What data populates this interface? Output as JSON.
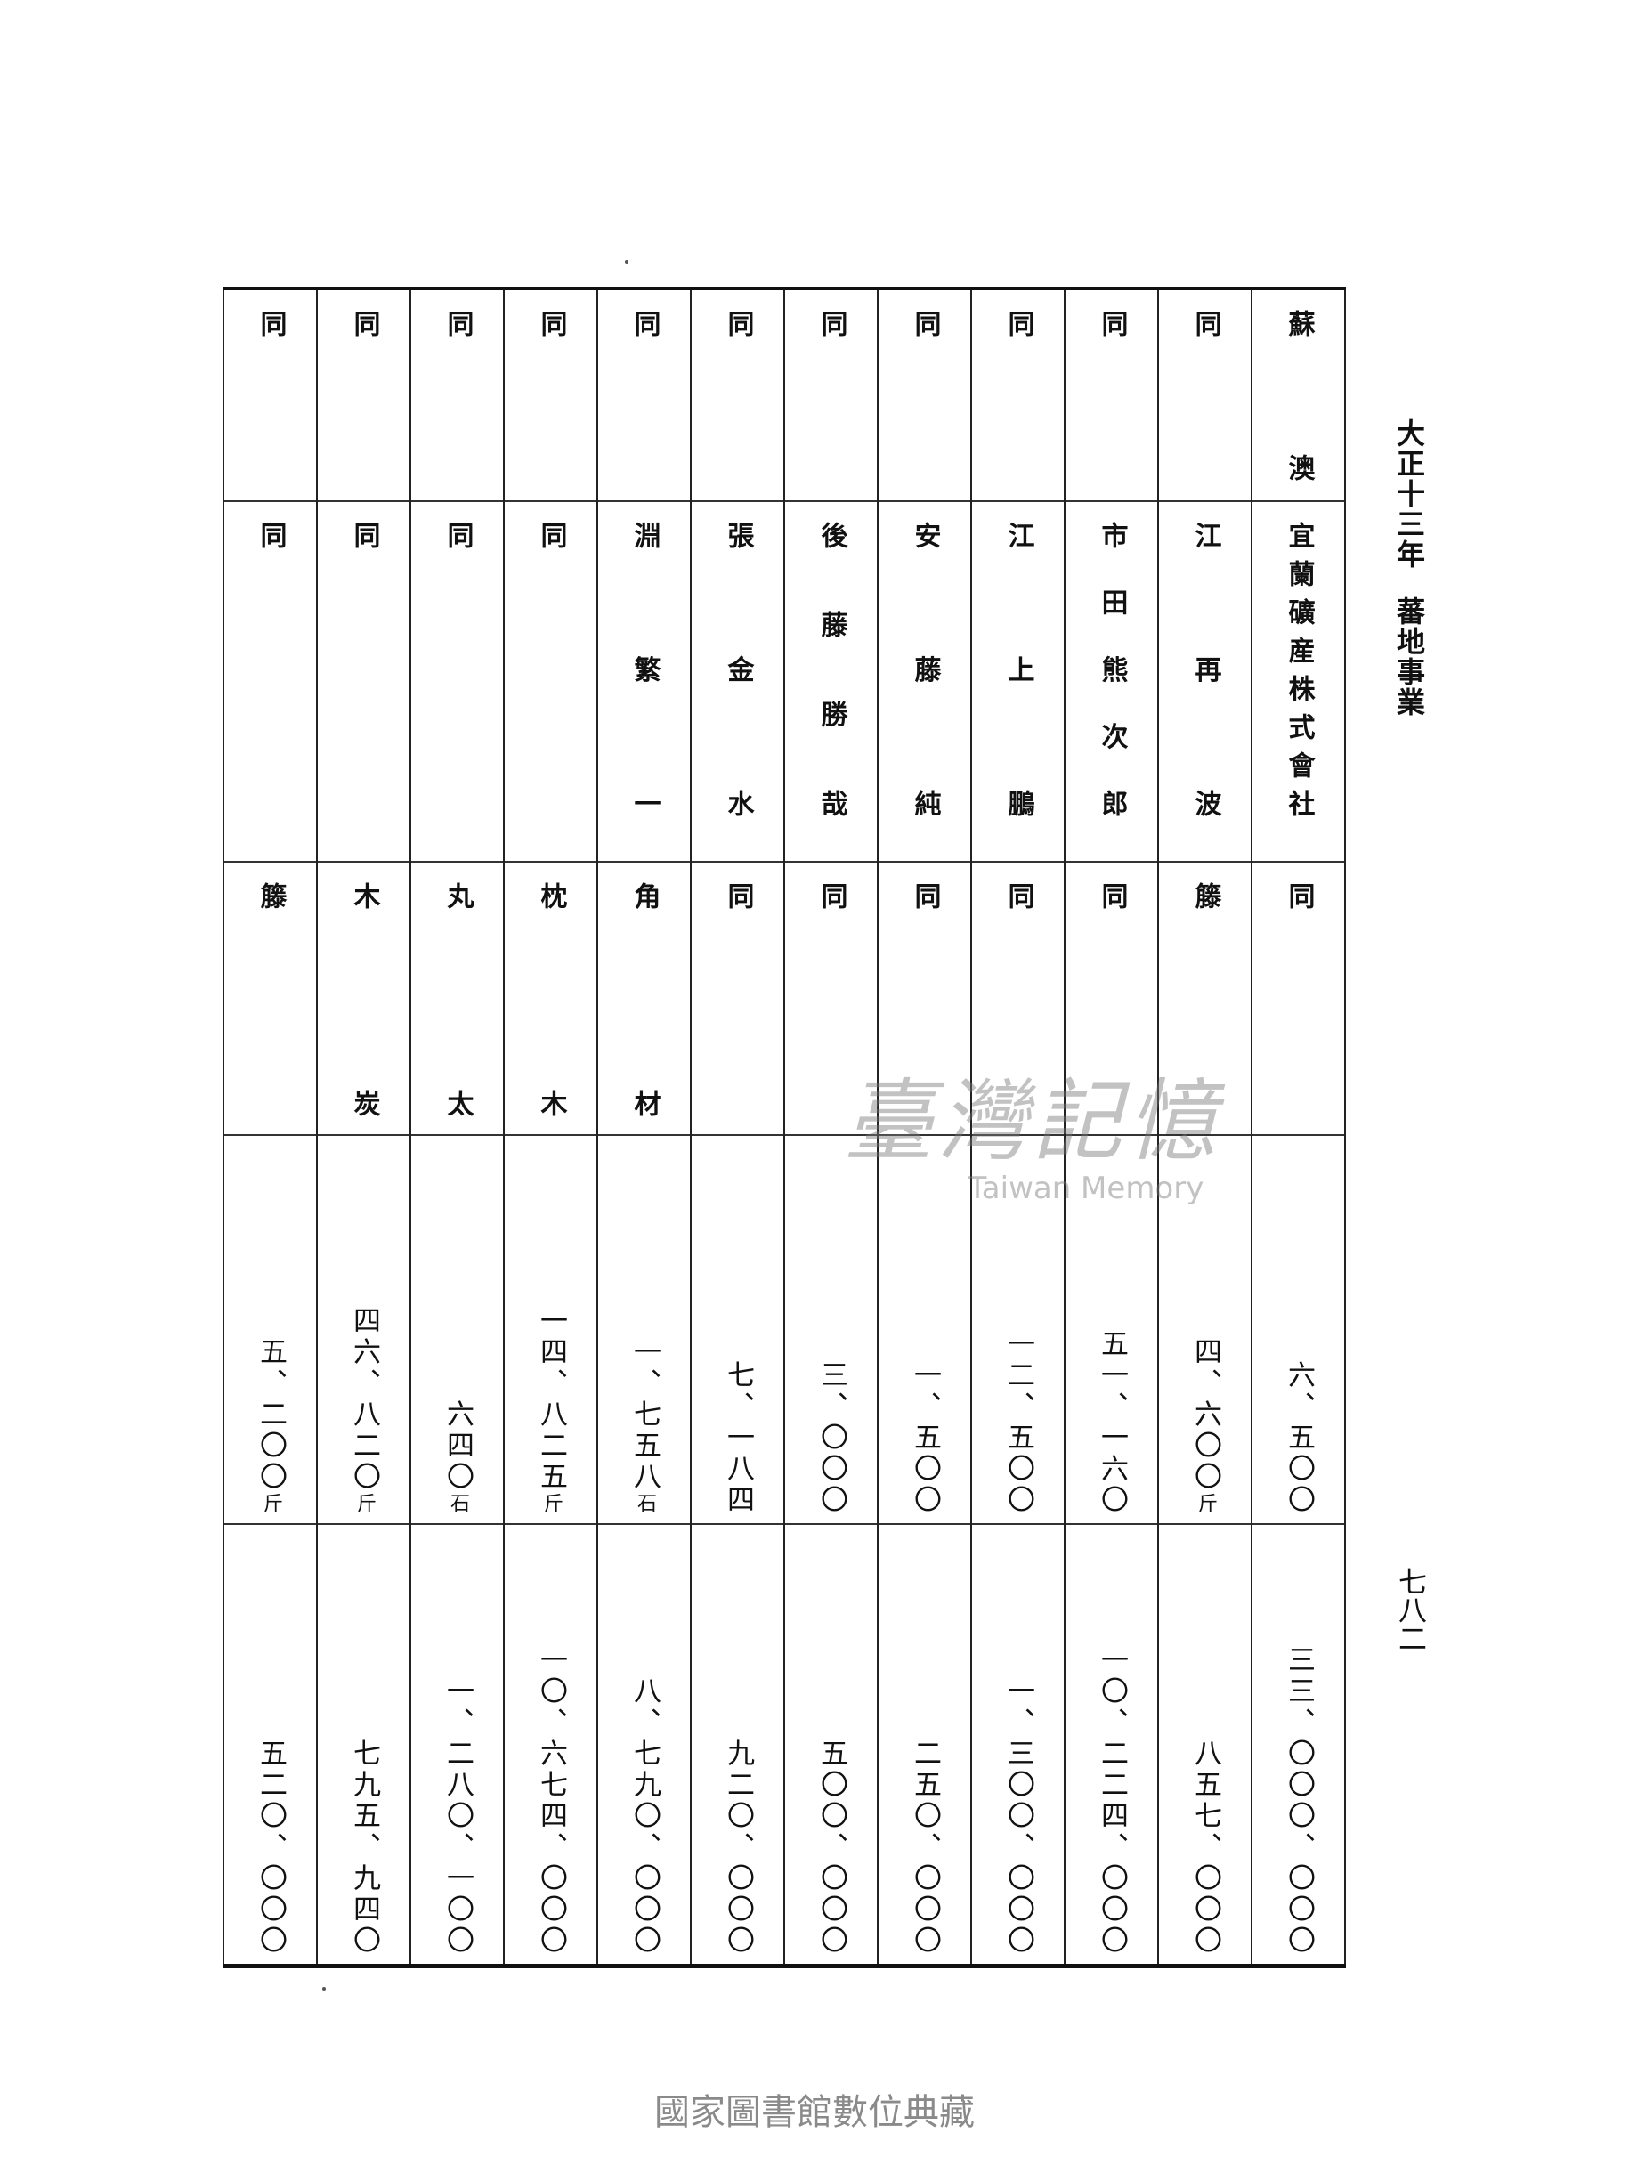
{
  "header": {
    "year": "大正十三年",
    "title": "蕃地事業"
  },
  "page_number": "七八二",
  "footer": "國家圖書館數位典藏",
  "watermark": {
    "cn": "臺灣記憶",
    "en": "Taiwan Memory"
  },
  "table": {
    "columns": [
      {
        "place": "蘇澳",
        "name": "宜蘭礦産株式會社",
        "item": "同",
        "quantity": "六、五〇〇",
        "unit": "",
        "value": "三三、〇〇〇、〇〇〇"
      },
      {
        "place": "同",
        "name": "江再波",
        "item": "籐",
        "quantity": "四、六〇〇",
        "unit": "斤",
        "value": "八五七、〇〇〇"
      },
      {
        "place": "同",
        "name": "市田熊次郎",
        "item": "同",
        "quantity": "五一、一六〇",
        "unit": "",
        "value": "一〇、二二四、〇〇〇"
      },
      {
        "place": "同",
        "name": "江上鵬",
        "item": "同",
        "quantity": "一二、五〇〇",
        "unit": "",
        "value": "一、三〇〇、〇〇〇"
      },
      {
        "place": "同",
        "name": "安藤純",
        "item": "同",
        "quantity": "一、五〇〇",
        "unit": "",
        "value": "二五〇、〇〇〇"
      },
      {
        "place": "同",
        "name": "後藤勝哉",
        "item": "同",
        "quantity": "三、〇〇〇",
        "unit": "",
        "value": "五〇〇、〇〇〇"
      },
      {
        "place": "同",
        "name": "張金水",
        "item": "同",
        "quantity": "七、一八四",
        "unit": "",
        "value": "九二〇、〇〇〇"
      },
      {
        "place": "同",
        "name": "淵繁一",
        "item": "角材",
        "quantity": "一、七五八",
        "unit": "石",
        "value": "八、七九〇、〇〇〇"
      },
      {
        "place": "同",
        "name": "同",
        "item": "枕木",
        "quantity": "一四、八二五",
        "unit": "斤",
        "value": "一〇、六七四、〇〇〇"
      },
      {
        "place": "同",
        "name": "同",
        "item": "丸太",
        "quantity": "六四〇",
        "unit": "石",
        "value": "一、二八〇、一〇〇"
      },
      {
        "place": "同",
        "name": "同",
        "item": "木炭",
        "quantity": "四六、八二〇",
        "unit": "斤",
        "value": "七九五、九四〇"
      },
      {
        "place": "同",
        "name": "同",
        "item": "籐",
        "quantity": "五、二〇〇",
        "unit": "斤",
        "value": "五二〇、〇〇〇"
      }
    ]
  }
}
